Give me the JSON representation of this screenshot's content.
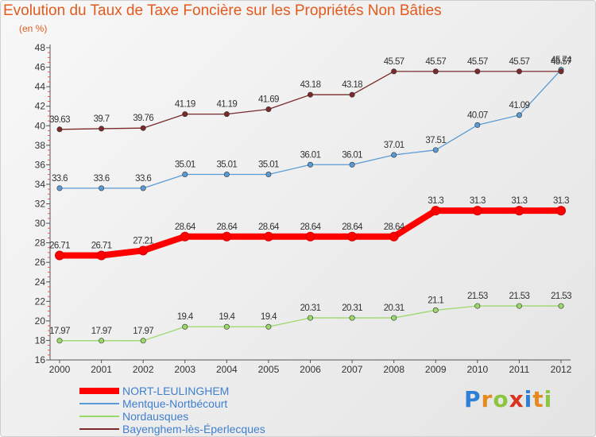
{
  "title": "Evolution du Taux de Taxe Foncière sur les Propriétés Non Bâties",
  "subtitle": "(en %)",
  "logo_text": "Proxiti",
  "chart_data": {
    "type": "line",
    "x": [
      "2000",
      "2001",
      "2002",
      "2003",
      "2004",
      "2005",
      "2006",
      "2007",
      "2008",
      "2009",
      "2010",
      "2011",
      "2012"
    ],
    "ylim": [
      16,
      48
    ],
    "yticks": [
      16,
      18,
      20,
      22,
      24,
      26,
      28,
      30,
      32,
      34,
      36,
      38,
      40,
      42,
      44,
      46,
      48
    ],
    "grid": false,
    "legend_position": "bottom-left",
    "series": [
      {
        "name": "NORT-LEULINGHEM",
        "color": "#ff0000",
        "values": [
          26.71,
          26.71,
          27.21,
          28.64,
          28.64,
          28.64,
          28.64,
          28.64,
          28.64,
          31.3,
          31.3,
          31.3,
          31.3
        ],
        "labels": [
          "26.71",
          "26.71",
          "27.21",
          "28.64",
          "28.64",
          "28.64",
          "28.64",
          "28.64",
          "28.64",
          "31.3",
          "31.3",
          "31.3",
          "31.3"
        ]
      },
      {
        "name": "Mentque-Nortbécourt",
        "color": "#5b9bd5",
        "values": [
          33.6,
          33.6,
          33.6,
          35.01,
          35.01,
          35.01,
          36.01,
          36.01,
          37.01,
          37.51,
          40.07,
          41.09,
          45.74
        ],
        "labels": [
          "33.6",
          "33.6",
          "33.6",
          "35.01",
          "35.01",
          "35.01",
          "36.01",
          "36.01",
          "37.01",
          "37.51",
          "40.07",
          "41.09",
          "45.74"
        ]
      },
      {
        "name": "Nordausques",
        "color": "#9bd86a",
        "values": [
          17.97,
          17.97,
          17.97,
          19.4,
          19.4,
          19.4,
          20.31,
          20.31,
          20.31,
          21.1,
          21.53,
          21.53,
          21.53
        ],
        "labels": [
          "17.97",
          "17.97",
          "17.97",
          "19.4",
          "19.4",
          "19.4",
          "20.31",
          "20.31",
          "20.31",
          "21.1",
          "21.53",
          "21.53",
          "21.53"
        ]
      },
      {
        "name": "Bayenghem-lès-Éperlecques",
        "color": "#7a2a2a",
        "values": [
          39.63,
          39.7,
          39.76,
          41.19,
          41.19,
          41.69,
          43.18,
          43.18,
          45.57,
          45.57,
          45.57,
          45.57,
          45.57
        ],
        "labels": [
          "39.63",
          "39.7",
          "39.76",
          "41.19",
          "41.19",
          "41.69",
          "43.18",
          "43.18",
          "45.57",
          "45.57",
          "45.57",
          "45.57",
          "45.57"
        ]
      }
    ]
  }
}
